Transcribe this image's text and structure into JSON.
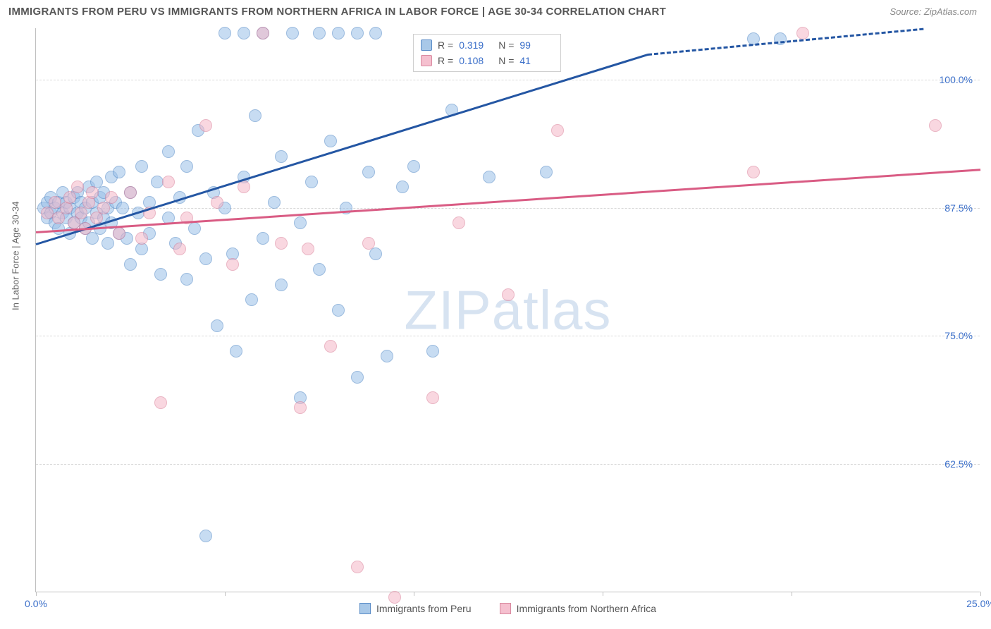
{
  "header": {
    "title": "IMMIGRANTS FROM PERU VS IMMIGRANTS FROM NORTHERN AFRICA IN LABOR FORCE | AGE 30-34 CORRELATION CHART",
    "source": "Source: ZipAtlas.com"
  },
  "chart": {
    "type": "scatter",
    "ylabel": "In Labor Force | Age 30-34",
    "watermark": "ZIPatlas",
    "background_color": "#ffffff",
    "grid_color": "#d8d8d8",
    "axis_color": "#bfbfbf",
    "tick_label_color": "#3b6fc9",
    "xlim": [
      0,
      25
    ],
    "ylim": [
      50,
      105
    ],
    "xticks": [
      0,
      5,
      10,
      15,
      20,
      25
    ],
    "xtick_labels": [
      "0.0%",
      "",
      "",
      "",
      "",
      "25.0%"
    ],
    "yticks": [
      62.5,
      75,
      87.5,
      100
    ],
    "ytick_labels": [
      "62.5%",
      "75.0%",
      "87.5%",
      "100.0%"
    ],
    "series": [
      {
        "id": "a",
        "name": "Immigrants from Peru",
        "marker_fill": "#9bc0e8",
        "marker_stroke": "#4a84c4",
        "line_color": "#2456a3",
        "r": 0.319,
        "n": 99,
        "trend": {
          "x1": 0,
          "y1": 84.0,
          "x2": 16.2,
          "y2": 102.5,
          "dash_to_x": 23.5
        },
        "points": [
          [
            0.2,
            87.5
          ],
          [
            0.3,
            88.0
          ],
          [
            0.3,
            86.5
          ],
          [
            0.4,
            87.0
          ],
          [
            0.4,
            88.5
          ],
          [
            0.5,
            86.0
          ],
          [
            0.5,
            87.5
          ],
          [
            0.6,
            88.0
          ],
          [
            0.6,
            85.5
          ],
          [
            0.7,
            87.0
          ],
          [
            0.7,
            89.0
          ],
          [
            0.8,
            86.5
          ],
          [
            0.8,
            88.0
          ],
          [
            0.9,
            87.5
          ],
          [
            0.9,
            85.0
          ],
          [
            1.0,
            88.5
          ],
          [
            1.0,
            86.0
          ],
          [
            1.1,
            87.0
          ],
          [
            1.1,
            89.0
          ],
          [
            1.2,
            86.5
          ],
          [
            1.2,
            88.0
          ],
          [
            1.3,
            85.5
          ],
          [
            1.3,
            87.5
          ],
          [
            1.4,
            89.5
          ],
          [
            1.4,
            86.0
          ],
          [
            1.5,
            88.0
          ],
          [
            1.5,
            84.5
          ],
          [
            1.6,
            87.0
          ],
          [
            1.6,
            90.0
          ],
          [
            1.7,
            85.5
          ],
          [
            1.7,
            88.5
          ],
          [
            1.8,
            86.5
          ],
          [
            1.8,
            89.0
          ],
          [
            1.9,
            84.0
          ],
          [
            1.9,
            87.5
          ],
          [
            2.0,
            90.5
          ],
          [
            2.0,
            86.0
          ],
          [
            2.1,
            88.0
          ],
          [
            2.2,
            85.0
          ],
          [
            2.2,
            91.0
          ],
          [
            2.3,
            87.5
          ],
          [
            2.4,
            84.5
          ],
          [
            2.5,
            89.0
          ],
          [
            2.5,
            82.0
          ],
          [
            2.7,
            87.0
          ],
          [
            2.8,
            91.5
          ],
          [
            2.8,
            83.5
          ],
          [
            3.0,
            88.0
          ],
          [
            3.0,
            85.0
          ],
          [
            3.2,
            90.0
          ],
          [
            3.3,
            81.0
          ],
          [
            3.5,
            86.5
          ],
          [
            3.5,
            93.0
          ],
          [
            3.7,
            84.0
          ],
          [
            3.8,
            88.5
          ],
          [
            4.0,
            80.5
          ],
          [
            4.0,
            91.5
          ],
          [
            4.2,
            85.5
          ],
          [
            4.3,
            95.0
          ],
          [
            4.5,
            82.5
          ],
          [
            4.5,
            55.5
          ],
          [
            4.7,
            89.0
          ],
          [
            4.8,
            76.0
          ],
          [
            5.0,
            104.5
          ],
          [
            5.0,
            87.5
          ],
          [
            5.2,
            83.0
          ],
          [
            5.3,
            73.5
          ],
          [
            5.5,
            104.5
          ],
          [
            5.5,
            90.5
          ],
          [
            5.7,
            78.5
          ],
          [
            5.8,
            96.5
          ],
          [
            6.0,
            84.5
          ],
          [
            6.0,
            104.5
          ],
          [
            6.3,
            88.0
          ],
          [
            6.5,
            80.0
          ],
          [
            6.5,
            92.5
          ],
          [
            6.8,
            104.5
          ],
          [
            7.0,
            86.0
          ],
          [
            7.0,
            69.0
          ],
          [
            7.3,
            90.0
          ],
          [
            7.5,
            81.5
          ],
          [
            7.5,
            104.5
          ],
          [
            7.8,
            94.0
          ],
          [
            8.0,
            104.5
          ],
          [
            8.0,
            77.5
          ],
          [
            8.2,
            87.5
          ],
          [
            8.5,
            104.5
          ],
          [
            8.5,
            71.0
          ],
          [
            8.8,
            91.0
          ],
          [
            9.0,
            83.0
          ],
          [
            9.0,
            104.5
          ],
          [
            9.3,
            73.0
          ],
          [
            9.7,
            89.5
          ],
          [
            10.0,
            91.5
          ],
          [
            10.5,
            73.5
          ],
          [
            11.0,
            97.0
          ],
          [
            12.0,
            90.5
          ],
          [
            13.5,
            91.0
          ],
          [
            19.0,
            104.0
          ],
          [
            19.7,
            104.0
          ]
        ]
      },
      {
        "id": "b",
        "name": "Immigrants from Northern Africa",
        "marker_fill": "#f5b8c8",
        "marker_stroke": "#d97a94",
        "line_color": "#d95c84",
        "r": 0.108,
        "n": 41,
        "trend": {
          "x1": 0,
          "y1": 85.2,
          "x2": 25,
          "y2": 91.3
        },
        "points": [
          [
            0.3,
            87.0
          ],
          [
            0.5,
            88.0
          ],
          [
            0.6,
            86.5
          ],
          [
            0.8,
            87.5
          ],
          [
            0.9,
            88.5
          ],
          [
            1.0,
            86.0
          ],
          [
            1.1,
            89.5
          ],
          [
            1.2,
            87.0
          ],
          [
            1.3,
            85.5
          ],
          [
            1.4,
            88.0
          ],
          [
            1.5,
            89.0
          ],
          [
            1.6,
            86.5
          ],
          [
            1.8,
            87.5
          ],
          [
            2.0,
            88.5
          ],
          [
            2.2,
            85.0
          ],
          [
            2.5,
            89.0
          ],
          [
            2.8,
            84.5
          ],
          [
            3.0,
            87.0
          ],
          [
            3.3,
            68.5
          ],
          [
            3.5,
            90.0
          ],
          [
            3.8,
            83.5
          ],
          [
            4.0,
            86.5
          ],
          [
            4.5,
            95.5
          ],
          [
            4.8,
            88.0
          ],
          [
            5.2,
            82.0
          ],
          [
            5.5,
            89.5
          ],
          [
            6.0,
            104.5
          ],
          [
            6.5,
            84.0
          ],
          [
            7.0,
            68.0
          ],
          [
            7.2,
            83.5
          ],
          [
            7.8,
            74.0
          ],
          [
            8.5,
            52.5
          ],
          [
            8.8,
            84.0
          ],
          [
            9.5,
            49.5
          ],
          [
            10.5,
            69.0
          ],
          [
            11.2,
            86.0
          ],
          [
            12.5,
            79.0
          ],
          [
            13.8,
            95.0
          ],
          [
            19.0,
            91.0
          ],
          [
            20.3,
            104.5
          ],
          [
            23.8,
            95.5
          ]
        ]
      }
    ],
    "legend": {
      "series_a_label": "Immigrants from Peru",
      "series_b_label": "Immigrants from Northern Africa"
    },
    "stats_box": {
      "r_label": "R =",
      "n_label": "N ="
    }
  }
}
